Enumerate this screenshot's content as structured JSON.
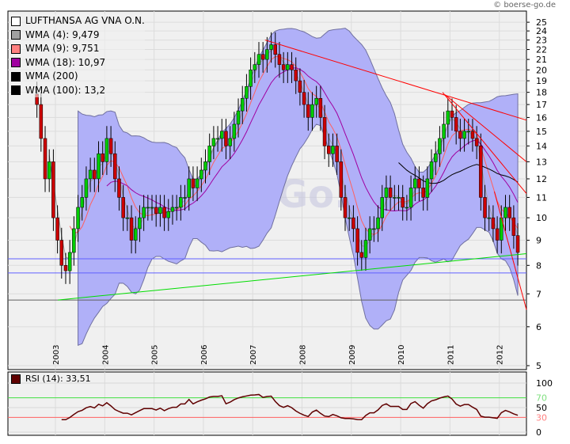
{
  "header": {
    "copyright": "© boerse-go.de",
    "watermark": "BoerseGo.de"
  },
  "legend": [
    {
      "label": "LUFTHANSA AG VNA O.N.",
      "color": "#ffffff"
    },
    {
      "label": "WMA (4): 9,479",
      "color": "#a0a0a0"
    },
    {
      "label": "WMA (9): 9,751",
      "color": "#ff8080"
    },
    {
      "label": "WMA (18): 10,97",
      "color": "#a000a0"
    },
    {
      "label": "WMA (200)",
      "color": "#000000"
    },
    {
      "label": "WMA (100): 13,2",
      "color": "#000000"
    }
  ],
  "rsi": {
    "label": "RSI (14): 33,51",
    "color": "#600000",
    "ticks": [
      "100",
      "70",
      "50",
      "30",
      "0"
    ],
    "levels": [
      100,
      70,
      50,
      30,
      0
    ]
  },
  "chart_data": {
    "type": "candlestick",
    "scale": "log",
    "ylim": [
      5,
      25
    ],
    "yticks": [
      5,
      6,
      7,
      8,
      9,
      10,
      11,
      12,
      13,
      14,
      15,
      16,
      17,
      18,
      19,
      20,
      21,
      22,
      23,
      24,
      25
    ],
    "xticks": [
      "2003",
      "2004",
      "2005",
      "2006",
      "2007",
      "2008",
      "2009",
      "2010",
      "2011",
      "2012"
    ],
    "start": [
      2002,
      8
    ],
    "closes": [
      17,
      14.5,
      12,
      13,
      10,
      9,
      8,
      7.8,
      8.5,
      9.5,
      10.5,
      11,
      12,
      12.5,
      12,
      13.5,
      13,
      14.5,
      13.5,
      12,
      11,
      10,
      10,
      9,
      9.5,
      10,
      10.5,
      10.5,
      10.5,
      10.2,
      10.5,
      10,
      10.3,
      10.5,
      10.5,
      11,
      11,
      12,
      11.5,
      12,
      12.5,
      13,
      14,
      14.5,
      14.5,
      15,
      14,
      14.5,
      15.5,
      16.5,
      17.5,
      18.5,
      20,
      20.5,
      21.5,
      21,
      22,
      22.5,
      21.5,
      20.5,
      20,
      20.5,
      20,
      19,
      18,
      17,
      16,
      17,
      17.5,
      16,
      14,
      13.5,
      14,
      13,
      11,
      10,
      10,
      9.5,
      8.5,
      8.3,
      9,
      9.5,
      9.5,
      10,
      11,
      11.5,
      11,
      11,
      11,
      10.5,
      10.5,
      11.5,
      12,
      11.5,
      11,
      12,
      13,
      13.5,
      14.5,
      15.5,
      16.5,
      16,
      15,
      14.5,
      15,
      15,
      14.5,
      14,
      11,
      10,
      10,
      9.5,
      9,
      10,
      10.5,
      10,
      9.2,
      8.5
    ],
    "trendlines": [
      {
        "color": "#ff0000",
        "from": [
          2007.25,
          23
        ],
        "to": [
          2012.95,
          15.8
        ]
      },
      {
        "color": "#ff0000",
        "from": [
          2010.85,
          18
        ],
        "to": [
          2012.95,
          11.2
        ]
      },
      {
        "color": "#ff0000",
        "from": [
          2010.9,
          17.8
        ],
        "to": [
          2012.95,
          13
        ]
      },
      {
        "color": "#ff0000",
        "from": [
          2011.9,
          11.3
        ],
        "to": [
          2012.95,
          6.5
        ]
      },
      {
        "color": "#00dd00",
        "from": [
          2003.05,
          6.8
        ],
        "to": [
          2012.95,
          8.45
        ]
      }
    ],
    "hlines": [
      {
        "color": "#6060ff",
        "value": 8.25
      },
      {
        "color": "#6060ff",
        "value": 7.72
      },
      {
        "color": "#606060",
        "value": 6.8
      }
    ]
  }
}
